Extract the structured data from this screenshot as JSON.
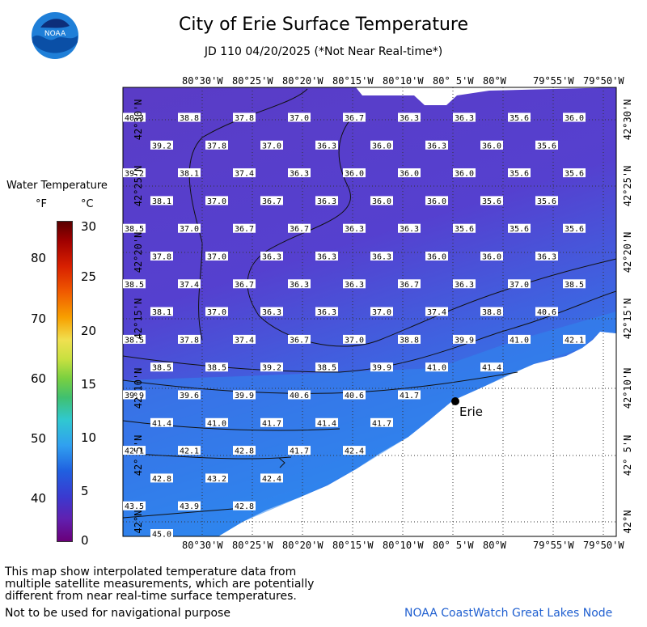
{
  "header": {
    "title": "City of Erie Surface Temperature",
    "subtitle": "JD 110 04/20/2025 (*Not Near Real-time*)",
    "logo_text": "NOAA"
  },
  "legend": {
    "title": "Water Temperature",
    "unit_f": "°F",
    "unit_c": "°C",
    "f_ticks": [
      "80",
      "70",
      "60",
      "50",
      "40"
    ],
    "c_ticks": [
      "30",
      "25",
      "20",
      "15",
      "10",
      "5",
      "0"
    ],
    "colors": {
      "water_cold": "#5b3fc8",
      "water_warm": "#2a86ee",
      "land": "#ffffff"
    }
  },
  "axes": {
    "lon_top": [
      "80°30'W",
      "80°25'W",
      "80°20'W",
      "80°15'W",
      "80°10'W",
      "80° 5'W",
      "80°W",
      "79°55'W",
      "79°50'W"
    ],
    "lon_bottom": [
      "80°30'W",
      "80°25'W",
      "80°20'W",
      "80°15'W",
      "80°10'W",
      "80° 5'W",
      "80°W",
      "79°55'W",
      "79°50'W"
    ],
    "lat": [
      "42°30'N",
      "42°25'N",
      "42°20'N",
      "42°15'N",
      "42°10'N",
      "42° 5'N",
      "42°N"
    ]
  },
  "city": {
    "name": "Erie"
  },
  "temperatures": [
    [
      "40.3",
      "38.8",
      "37.8",
      "37.0",
      "36.7",
      "36.3",
      "36.3",
      "35.6",
      "36.0"
    ],
    [
      "39.2",
      "37.8",
      "37.0",
      "36.3",
      "36.0",
      "36.3",
      "36.0",
      "35.6",
      ""
    ],
    [
      "39.2",
      "38.1",
      "37.4",
      "36.3",
      "36.0",
      "36.0",
      "36.0",
      "35.6",
      "35.6"
    ],
    [
      "38.1",
      "37.0",
      "36.7",
      "36.3",
      "36.0",
      "36.0",
      "35.6",
      "35.6",
      ""
    ],
    [
      "38.5",
      "37.0",
      "36.7",
      "36.7",
      "36.3",
      "36.3",
      "35.6",
      "35.6",
      "35.6"
    ],
    [
      "37.8",
      "37.0",
      "36.3",
      "36.3",
      "36.3",
      "36.0",
      "36.0",
      "36.3",
      ""
    ],
    [
      "38.5",
      "37.4",
      "36.7",
      "36.3",
      "36.3",
      "36.7",
      "36.3",
      "37.0",
      "38.5"
    ],
    [
      "38.1",
      "37.0",
      "36.3",
      "36.3",
      "37.0",
      "37.4",
      "38.8",
      "40.6",
      ""
    ],
    [
      "38.5",
      "37.8",
      "37.4",
      "36.7",
      "37.0",
      "38.8",
      "39.9",
      "41.0",
      "42.1"
    ],
    [
      "38.5",
      "38.5",
      "39.2",
      "38.5",
      "39.9",
      "41.0",
      "41.4",
      "",
      ""
    ],
    [
      "39.9",
      "39.6",
      "39.9",
      "40.6",
      "40.6",
      "41.7",
      "",
      "",
      ""
    ],
    [
      "41.4",
      "41.0",
      "41.7",
      "41.4",
      "41.7",
      "",
      "",
      "",
      ""
    ],
    [
      "42.1",
      "42.1",
      "42.8",
      "41.7",
      "42.4",
      "",
      "",
      "",
      ""
    ],
    [
      "42.8",
      "43.2",
      "42.4",
      "",
      "",
      "",
      "",
      "",
      ""
    ],
    [
      "43.5",
      "43.9",
      "42.8",
      "",
      "",
      "",
      "",
      "",
      ""
    ],
    [
      "45.0",
      "",
      "",
      "",
      "",
      "",
      "",
      "",
      ""
    ]
  ],
  "footer": {
    "note_lines": [
      "This map show interpolated temperature data from",
      "multiple satellite measurements, which are potentially",
      "different from near real-time surface temperatures.",
      "Not to be used for navigational purpose"
    ],
    "credit": "NOAA CoastWatch Great Lakes Node"
  }
}
